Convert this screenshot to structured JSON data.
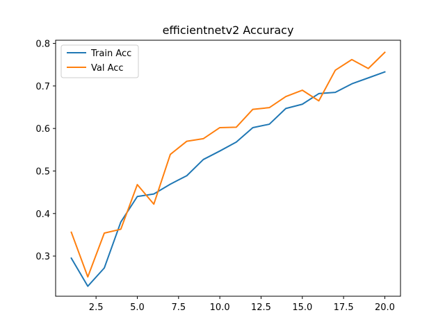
{
  "chart_data": {
    "type": "line",
    "title": "efficientnetv2 Accuracy",
    "xlabel": "",
    "ylabel": "",
    "xlim": [
      0.05,
      20.95
    ],
    "ylim": [
      0.2055,
      0.8075
    ],
    "x_ticks": [
      {
        "value": 2.5,
        "label": "2.5"
      },
      {
        "value": 5.0,
        "label": "5.0"
      },
      {
        "value": 7.5,
        "label": "7.5"
      },
      {
        "value": 10.0,
        "label": "10.0"
      },
      {
        "value": 12.5,
        "label": "12.5"
      },
      {
        "value": 15.0,
        "label": "15.0"
      },
      {
        "value": 17.5,
        "label": "17.5"
      },
      {
        "value": 20.0,
        "label": "20.0"
      }
    ],
    "y_ticks": [
      {
        "value": 0.3,
        "label": "0.3"
      },
      {
        "value": 0.4,
        "label": "0.4"
      },
      {
        "value": 0.5,
        "label": "0.5"
      },
      {
        "value": 0.6,
        "label": "0.6"
      },
      {
        "value": 0.7,
        "label": "0.7"
      },
      {
        "value": 0.8,
        "label": "0.8"
      }
    ],
    "grid": false,
    "legend_position": "top-left",
    "x": [
      1,
      2,
      3,
      4,
      5,
      6,
      7,
      8,
      9,
      10,
      11,
      12,
      13,
      14,
      15,
      16,
      17,
      18,
      19,
      20
    ],
    "series": [
      {
        "name": "Train Acc",
        "color": "#1f77b4",
        "values": [
          0.295,
          0.229,
          0.272,
          0.38,
          0.44,
          0.446,
          0.469,
          0.489,
          0.527,
          0.547,
          0.568,
          0.602,
          0.61,
          0.647,
          0.657,
          0.682,
          0.685,
          0.705,
          0.719,
          0.733
        ]
      },
      {
        "name": "Val Acc",
        "color": "#ff7f0e",
        "values": [
          0.356,
          0.251,
          0.354,
          0.363,
          0.468,
          0.422,
          0.539,
          0.57,
          0.576,
          0.602,
          0.603,
          0.645,
          0.649,
          0.675,
          0.69,
          0.665,
          0.737,
          0.762,
          0.741,
          0.779
        ]
      }
    ]
  }
}
